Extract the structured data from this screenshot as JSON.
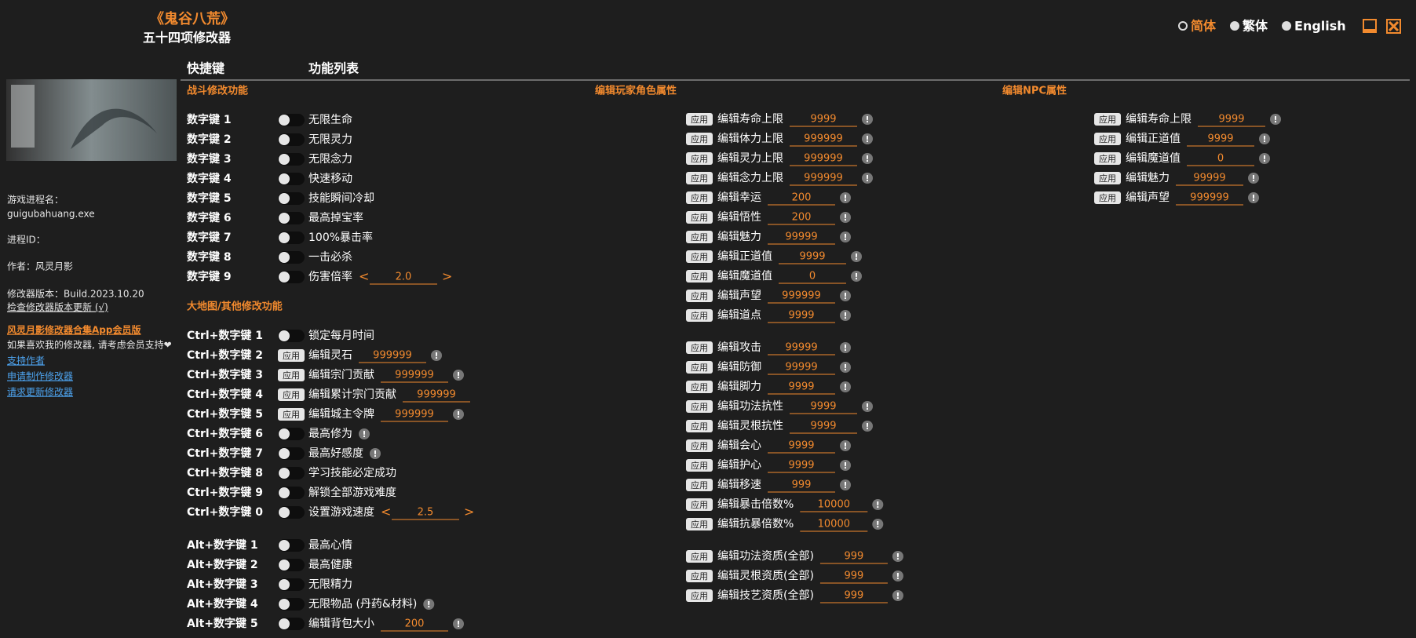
{
  "header": {
    "title": "《鬼谷八荒》",
    "subtitle": "五十四项修改器",
    "languages": [
      "简体",
      "繁体",
      "English"
    ]
  },
  "columns": [
    "快捷键",
    "功能列表"
  ],
  "sidebar": {
    "process_label": "游戏进程名：",
    "process_name": "guigubahuang.exe",
    "pid_label": "进程ID：",
    "author": "作者：风灵月影",
    "version": "修改器版本：Build.2023.10.20",
    "check_update": "检查修改器版本更新 (√)",
    "app_link": "风灵月影修改器合集App会员版",
    "support_note": "如果喜欢我的修改器, 请考虑会员支持❤",
    "links": [
      "支持作者",
      "申请制作修改器",
      "请求更新修改器"
    ]
  },
  "controls": {
    "apply": "应用",
    "info": "!",
    "prev": "<",
    "next": ">"
  },
  "combat": {
    "title": "战斗修改功能",
    "rows": [
      {
        "key": "数字键 1",
        "label": "无限生命",
        "control": "toggle"
      },
      {
        "key": "数字键 2",
        "label": "无限灵力",
        "control": "toggle"
      },
      {
        "key": "数字键 3",
        "label": "无限念力",
        "control": "toggle"
      },
      {
        "key": "数字键 4",
        "label": "快速移动",
        "control": "toggle"
      },
      {
        "key": "数字键 5",
        "label": "技能瞬间冷却",
        "control": "toggle"
      },
      {
        "key": "数字键 6",
        "label": "最高掉宝率",
        "control": "toggle"
      },
      {
        "key": "数字键 7",
        "label": "100%暴击率",
        "control": "toggle"
      },
      {
        "key": "数字键 8",
        "label": "一击必杀",
        "control": "toggle"
      },
      {
        "key": "数字键 9",
        "label": "伤害倍率",
        "control": "toggle",
        "value": "2.0",
        "stepper": true
      }
    ]
  },
  "map": {
    "title": "大地图/其他修改功能",
    "groups": [
      [
        {
          "key": "Ctrl+数字键 1",
          "label": "锁定每月时间",
          "control": "toggle"
        },
        {
          "key": "Ctrl+数字键 2",
          "label": "编辑灵石",
          "control": "apply",
          "value": "999999",
          "info": true
        },
        {
          "key": "Ctrl+数字键 3",
          "label": "编辑宗门贡献",
          "control": "apply",
          "value": "999999",
          "info": true
        },
        {
          "key": "Ctrl+数字键 4",
          "label": "编辑累计宗门贡献",
          "control": "apply",
          "value": "999999"
        },
        {
          "key": "Ctrl+数字键 5",
          "label": "编辑城主令牌",
          "control": "apply",
          "value": "999999",
          "info": true
        },
        {
          "key": "Ctrl+数字键 6",
          "label": "最高修为",
          "control": "toggle",
          "info": true
        },
        {
          "key": "Ctrl+数字键 7",
          "label": "最高好感度",
          "control": "toggle",
          "info": true
        },
        {
          "key": "Ctrl+数字键 8",
          "label": "学习技能必定成功",
          "control": "toggle"
        },
        {
          "key": "Ctrl+数字键 9",
          "label": "解锁全部游戏难度",
          "control": "toggle"
        },
        {
          "key": "Ctrl+数字键 0",
          "label": "设置游戏速度",
          "control": "toggle",
          "value": "2.5",
          "stepper": true
        }
      ],
      [
        {
          "key": "Alt+数字键 1",
          "label": "最高心情",
          "control": "toggle"
        },
        {
          "key": "Alt+数字键 2",
          "label": "最高健康",
          "control": "toggle"
        },
        {
          "key": "Alt+数字键 3",
          "label": "无限精力",
          "control": "toggle"
        },
        {
          "key": "Alt+数字键 4",
          "label": "无限物品 (丹药&材料)",
          "control": "toggle",
          "info": true
        },
        {
          "key": "Alt+数字键 5",
          "label": "编辑背包大小",
          "control": "toggle",
          "value": "200",
          "info": true
        }
      ]
    ]
  },
  "player": {
    "title": "编辑玩家角色属性",
    "groups": [
      [
        {
          "label": "编辑寿命上限",
          "control": "apply",
          "value": "9999",
          "info": true
        },
        {
          "label": "编辑体力上限",
          "control": "apply",
          "value": "999999",
          "info": true
        },
        {
          "label": "编辑灵力上限",
          "control": "apply",
          "value": "999999",
          "info": true
        },
        {
          "label": "编辑念力上限",
          "control": "apply",
          "value": "999999",
          "info": true
        },
        {
          "label": "编辑幸运",
          "control": "apply",
          "value": "200",
          "info": true
        },
        {
          "label": "编辑悟性",
          "control": "apply",
          "value": "200",
          "info": true
        },
        {
          "label": "编辑魅力",
          "control": "apply",
          "value": "99999",
          "info": true
        },
        {
          "label": "编辑正道值",
          "control": "apply",
          "value": "9999",
          "info": true
        },
        {
          "label": "编辑魔道值",
          "control": "apply",
          "value": "0",
          "info": true
        },
        {
          "label": "编辑声望",
          "control": "apply",
          "value": "999999",
          "info": true
        },
        {
          "label": "编辑道点",
          "control": "apply",
          "value": "9999",
          "info": true
        }
      ],
      [
        {
          "label": "编辑攻击",
          "control": "apply",
          "value": "99999",
          "info": true
        },
        {
          "label": "编辑防御",
          "control": "apply",
          "value": "99999",
          "info": true
        },
        {
          "label": "编辑脚力",
          "control": "apply",
          "value": "9999",
          "info": true
        },
        {
          "label": "编辑功法抗性",
          "control": "apply",
          "value": "9999",
          "info": true
        },
        {
          "label": "编辑灵根抗性",
          "control": "apply",
          "value": "9999",
          "info": true
        },
        {
          "label": "编辑会心",
          "control": "apply",
          "value": "9999",
          "info": true
        },
        {
          "label": "编辑护心",
          "control": "apply",
          "value": "9999",
          "info": true
        },
        {
          "label": "编辑移速",
          "control": "apply",
          "value": "999",
          "info": true
        },
        {
          "label": "编辑暴击倍数%",
          "control": "apply",
          "value": "10000",
          "info": true
        },
        {
          "label": "编辑抗暴倍数%",
          "control": "apply",
          "value": "10000",
          "info": true
        }
      ],
      [
        {
          "label": "编辑功法资质(全部)",
          "control": "apply",
          "value": "999",
          "info": true
        },
        {
          "label": "编辑灵根资质(全部)",
          "control": "apply",
          "value": "999",
          "info": true
        },
        {
          "label": "编辑技艺资质(全部)",
          "control": "apply",
          "value": "999",
          "info": true
        }
      ]
    ]
  },
  "npc": {
    "title": "编辑NPC属性",
    "groups": [
      [
        {
          "label": "编辑寿命上限",
          "control": "apply",
          "value": "9999",
          "info": true
        },
        {
          "label": "编辑正道值",
          "control": "apply",
          "value": "9999",
          "info": true
        },
        {
          "label": "编辑魔道值",
          "control": "apply",
          "value": "0",
          "info": true
        },
        {
          "label": "编辑魅力",
          "control": "apply",
          "value": "99999",
          "info": true
        },
        {
          "label": "编辑声望",
          "control": "apply",
          "value": "999999",
          "info": true
        }
      ]
    ]
  }
}
